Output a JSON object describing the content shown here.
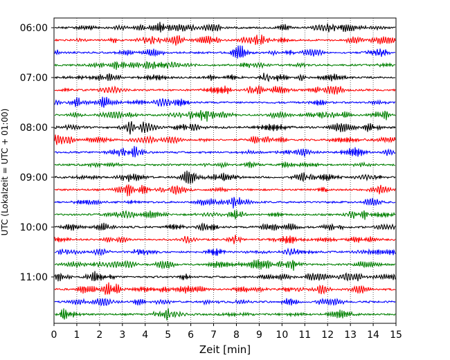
{
  "chart_data": {
    "type": "line",
    "title": "",
    "xlabel": "Zeit  [min]",
    "ylabel": "UTC (Lokalzeit = UTC + 01:00)",
    "xlim": [
      0,
      15
    ],
    "x_ticks": [
      "0",
      "1",
      "2",
      "3",
      "4",
      "5",
      "6",
      "7",
      "8",
      "9",
      "10",
      "11",
      "12",
      "13",
      "14",
      "15"
    ],
    "y_ticks": [
      "06:00",
      "07:00",
      "08:00",
      "09:00",
      "10:00",
      "11:00"
    ],
    "grid": "vertical dotted",
    "trace_interval_min": 15,
    "first_trace": "06:00",
    "trace_count": 24,
    "trace_colors": [
      "#000000",
      "#ff0000",
      "#0000ff",
      "#008000"
    ],
    "description": "Helicorder-style seismogram display; each row is 15 minutes of ground motion, repeating color cycle black, red, blue, green."
  }
}
